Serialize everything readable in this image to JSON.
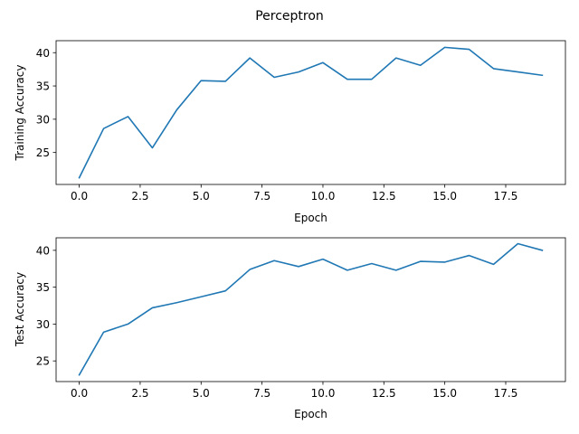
{
  "figure": {
    "title": "Perceptron"
  },
  "colors": {
    "series": "#1f77b4"
  },
  "chart_data": [
    {
      "type": "line",
      "xlabel": "Epoch",
      "ylabel": "Training Accuracy",
      "xlim": [
        -0.95,
        19.95
      ],
      "ylim": [
        20.2,
        41.8
      ],
      "xticks": [
        0,
        2.5,
        5,
        7.5,
        10,
        12.5,
        15,
        17.5
      ],
      "xtick_labels": [
        "0.0",
        "2.5",
        "5.0",
        "7.5",
        "10.0",
        "12.5",
        "15.0",
        "17.5"
      ],
      "yticks": [
        25,
        30,
        35,
        40
      ],
      "ytick_labels": [
        "25",
        "30",
        "35",
        "40"
      ],
      "series": [
        {
          "x": [
            0,
            1,
            2,
            3,
            4,
            5,
            6,
            7,
            8,
            9,
            10,
            11,
            12,
            13,
            14,
            15,
            16,
            17,
            18,
            19
          ],
          "values": [
            21.2,
            28.6,
            30.4,
            25.7,
            31.4,
            35.8,
            35.7,
            39.2,
            36.3,
            37.1,
            38.5,
            36.0,
            36.0,
            39.2,
            38.1,
            40.8,
            40.5,
            37.6,
            37.1,
            36.6
          ]
        }
      ]
    },
    {
      "type": "line",
      "xlabel": "Epoch",
      "ylabel": "Test Accuracy",
      "xlim": [
        -0.95,
        19.95
      ],
      "ylim": [
        22.2,
        41.7
      ],
      "xticks": [
        0,
        2.5,
        5,
        7.5,
        10,
        12.5,
        15,
        17.5
      ],
      "xtick_labels": [
        "0.0",
        "2.5",
        "5.0",
        "7.5",
        "10.0",
        "12.5",
        "15.0",
        "17.5"
      ],
      "yticks": [
        25,
        30,
        35,
        40
      ],
      "ytick_labels": [
        "25",
        "30",
        "35",
        "40"
      ],
      "series": [
        {
          "x": [
            0,
            1,
            2,
            3,
            4,
            5,
            6,
            7,
            8,
            9,
            10,
            11,
            12,
            13,
            14,
            15,
            16,
            17,
            18,
            19
          ],
          "values": [
            23.1,
            28.9,
            30.0,
            32.2,
            32.9,
            33.7,
            34.5,
            37.4,
            38.6,
            37.8,
            38.8,
            37.3,
            38.2,
            37.3,
            38.5,
            38.4,
            39.3,
            38.1,
            40.9,
            40.0
          ]
        }
      ]
    }
  ]
}
